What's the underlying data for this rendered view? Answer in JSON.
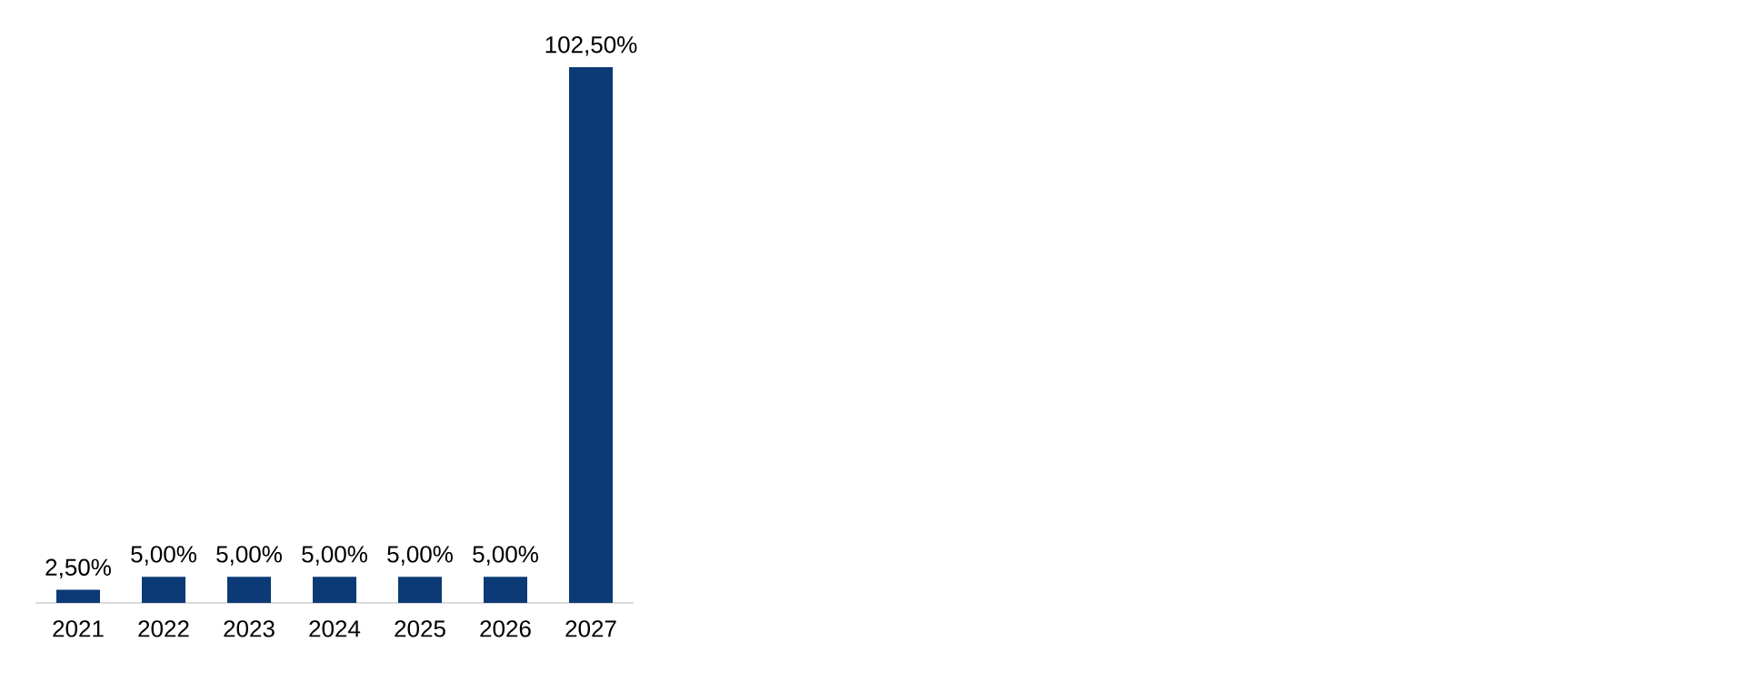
{
  "chart_data": {
    "type": "bar",
    "categories": [
      "2021",
      "2022",
      "2023",
      "2024",
      "2025",
      "2026",
      "2027"
    ],
    "values": [
      2.5,
      5,
      5,
      5,
      5,
      5,
      102.5
    ],
    "value_labels": [
      "2,50%",
      "5,00%",
      "5,00%",
      "5,00%",
      "5,00%",
      "5,00%",
      "102,50%"
    ],
    "color": "#0b3a76"
  }
}
